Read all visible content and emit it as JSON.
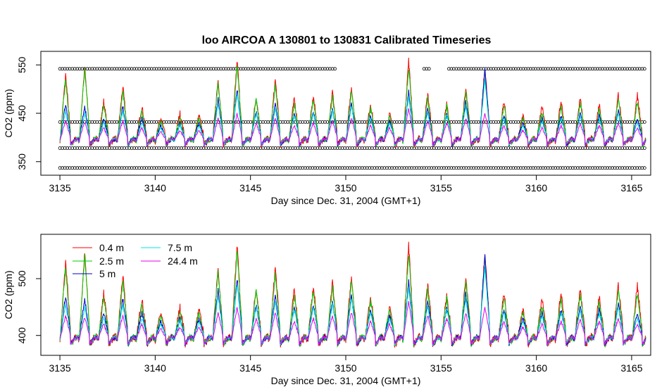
{
  "chart_data": [
    {
      "type": "scatter+line",
      "title": "loo   AIRCOA  A    130801  to  130831   Calibrated Timeseries",
      "xlabel": "Day since Dec. 31, 2004 (GMT+1)",
      "ylabel": "CO2 (ppm)",
      "x_ticks": [
        3135,
        3140,
        3145,
        3150,
        3155,
        3160,
        3165
      ],
      "y_ticks": [
        350,
        450,
        550
      ],
      "xlim": [
        3134.0,
        3166.0
      ],
      "ylim": [
        322,
        578
      ],
      "calibration_levels_ppm": [
        337,
        378,
        432,
        542
      ],
      "series": [
        {
          "name": "0.4 m",
          "color": "#ff0000"
        },
        {
          "name": "2.5 m",
          "color": "#00cc00"
        },
        {
          "name": "5 m",
          "color": "#0000cc"
        },
        {
          "name": "7.5 m",
          "color": "#00e5e5"
        },
        {
          "name": "24.4 m",
          "color": "#e500e5"
        }
      ]
    },
    {
      "type": "line",
      "title": "",
      "xlabel": "Day since Dec. 31, 2004 (GMT+1)",
      "ylabel": "CO2 (ppm)",
      "x_ticks": [
        3135,
        3140,
        3145,
        3150,
        3155,
        3160,
        3165
      ],
      "y_ticks": [
        400,
        500
      ],
      "xlim": [
        3134.0,
        3166.0
      ],
      "ylim": [
        365,
        578
      ],
      "legend_position": "top-left",
      "series": [
        {
          "name": "0.4 m",
          "color": "#ff0000"
        },
        {
          "name": "2.5 m",
          "color": "#00cc00"
        },
        {
          "name": "5 m",
          "color": "#0000cc"
        },
        {
          "name": "7.5 m",
          "color": "#00e5e5"
        },
        {
          "name": "24.4 m",
          "color": "#e500e5"
        }
      ],
      "daily_peaks_ppm": {
        "x": [
          3135.3,
          3136.3,
          3137.3,
          3138.3,
          3139.3,
          3140.3,
          3141.3,
          3142.3,
          3143.3,
          3144.3,
          3145.3,
          3146.3,
          3147.3,
          3148.3,
          3149.3,
          3150.3,
          3151.3,
          3152.3,
          3153.3,
          3154.3,
          3155.3,
          3156.3,
          3157.3,
          3158.3,
          3159.3,
          3160.3,
          3161.3,
          3162.3,
          3163.3,
          3164.3,
          3165.3
        ],
        "0.4 m": [
          530,
          545,
          475,
          505,
          465,
          440,
          450,
          445,
          520,
          560,
          485,
          520,
          480,
          485,
          495,
          505,
          470,
          450,
          560,
          490,
          470,
          500,
          545,
          475,
          445,
          465,
          475,
          480,
          470,
          490,
          490
        ],
        "2.5 m": [
          520,
          540,
          465,
          495,
          455,
          435,
          440,
          440,
          510,
          550,
          480,
          510,
          470,
          480,
          485,
          495,
          460,
          445,
          545,
          480,
          465,
          495,
          535,
          465,
          440,
          455,
          465,
          470,
          460,
          480,
          475
        ],
        "5 m": [
          470,
          465,
          440,
          465,
          440,
          425,
          430,
          430,
          480,
          500,
          455,
          470,
          450,
          455,
          460,
          470,
          445,
          435,
          495,
          460,
          450,
          475,
          540,
          445,
          430,
          440,
          445,
          450,
          445,
          455,
          440
        ],
        "7.5 m": [
          455,
          450,
          430,
          455,
          430,
          420,
          425,
          425,
          470,
          490,
          450,
          460,
          445,
          450,
          455,
          465,
          440,
          430,
          485,
          450,
          445,
          465,
          520,
          440,
          425,
          435,
          440,
          445,
          440,
          450,
          430
        ],
        "24.4 m": [
          435,
          432,
          420,
          435,
          420,
          412,
          415,
          415,
          440,
          450,
          430,
          440,
          425,
          430,
          435,
          440,
          425,
          420,
          460,
          435,
          430,
          440,
          450,
          425,
          415,
          420,
          425,
          428,
          425,
          430,
          420
        ]
      },
      "nightly_baseline_ppm": 395
    }
  ]
}
